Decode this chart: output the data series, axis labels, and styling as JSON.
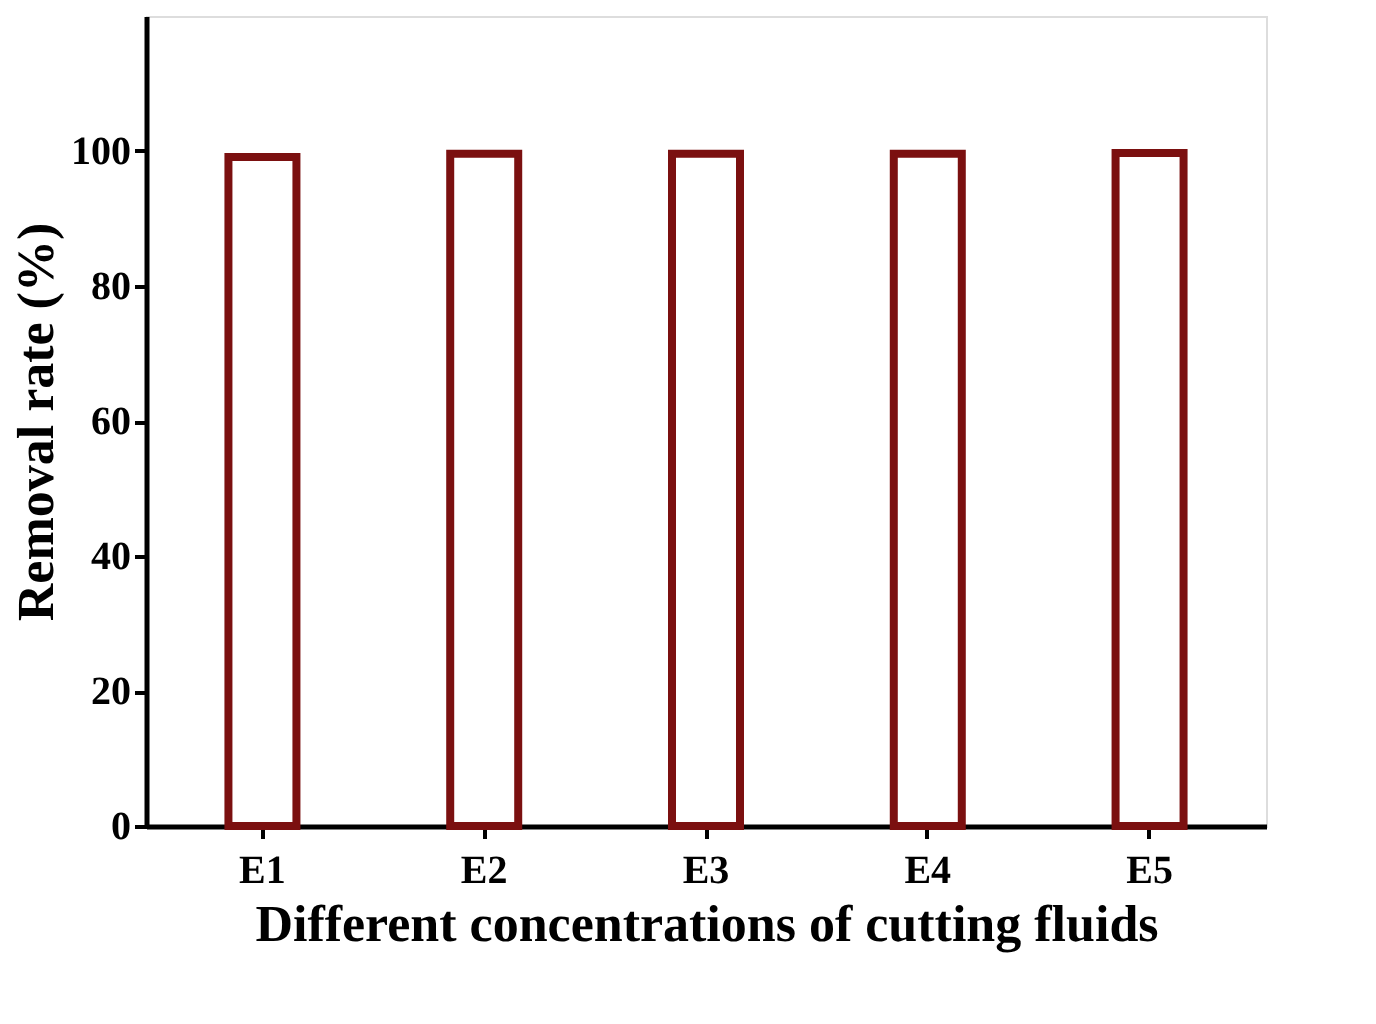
{
  "chart_data": {
    "type": "bar",
    "xlabel": "Different concentrations of cutting fluids",
    "ylabel": "Removal rate (%)",
    "categories": [
      "E1",
      "E2",
      "E3",
      "E4",
      "E5"
    ],
    "values": [
      99.1,
      99.6,
      99.6,
      99.6,
      99.7
    ],
    "color": "#7b1010",
    "ylim": [
      0,
      120
    ],
    "yticks": [
      0,
      20,
      40,
      60,
      80,
      100
    ],
    "grid": false
  }
}
